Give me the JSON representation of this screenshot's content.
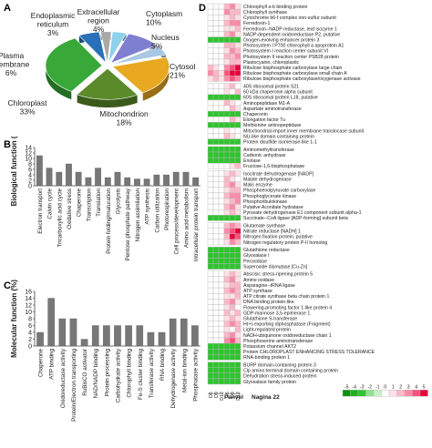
{
  "panels": {
    "a": {
      "letter": "A"
    },
    "b": {
      "letter": "B"
    },
    "c": {
      "letter": "C"
    },
    "d": {
      "letter": "D"
    }
  },
  "chart_data": [
    {
      "type": "pie",
      "panel": "A",
      "labels": [
        "Cytoplasm",
        "Nucleus",
        "Cytosol",
        "Mitochondrion",
        "Chloroplast",
        "Plasma membrane",
        "Endoplasmic reticulum",
        "Extracellular region"
      ],
      "values": [
        10,
        5,
        21,
        18,
        33,
        6,
        3,
        4
      ],
      "label_texts": [
        [
          "Cytoplasm",
          "10%"
        ],
        [
          "Nucleus",
          "5%"
        ],
        [
          "Cytosol",
          "21%"
        ],
        [
          "Mitochondrion",
          "18%"
        ],
        [
          "Chloroplast",
          "33%"
        ],
        [
          "Plasma",
          "membrane",
          "6%"
        ],
        [
          "Endoplasmic",
          "reticulum",
          "3%"
        ],
        [
          "Extracellular",
          "region",
          "4%"
        ]
      ],
      "colors": [
        "#7f7fd0",
        "#a8c8e4",
        "#e8a820",
        "#5a8a2a",
        "#38a838",
        "#2a70b8",
        "#a8a8a8",
        "#8fd0ea"
      ]
    },
    {
      "type": "bar",
      "panel": "B",
      "ylabel": "Biological function (%)",
      "ylim": [
        0,
        14
      ],
      "yticks": [
        "0",
        "2",
        "4",
        "6",
        "8",
        "10",
        "12",
        "14"
      ],
      "categories": [
        "Electron transport",
        "Calvin cycle",
        "Tricarboxylic acid cycle",
        "Oxidative stress",
        "Chaperone",
        "Transcription",
        "Translation",
        "Protein folding/maturation",
        "Glycolysis",
        "Pentose phosphate pathway",
        "Nitrogen assimilation",
        "ATP synthesis",
        "Carbon utilization",
        "Photorespiration",
        "Cell process/development",
        "Amino acid metabolism",
        "Intracellular protein transport"
      ],
      "values": [
        11,
        6.5,
        5,
        8,
        5,
        3,
        6.5,
        3,
        5,
        3,
        2.5,
        2.5,
        4,
        4,
        5,
        5,
        3
      ]
    },
    {
      "type": "bar",
      "panel": "C",
      "ylabel": "Molecular function (%)",
      "ylim": [
        0,
        16
      ],
      "yticks": [
        "0",
        "2",
        "4",
        "6",
        "8",
        "10",
        "12",
        "14",
        "16"
      ],
      "categories": [
        "Chaperone",
        "ATP binding",
        "Oxidoreductase activity",
        "Protein/Electron transporting",
        "RuBisCO activator",
        "NAD/NADP binding",
        "Protein processing",
        "Carbohydrate activity",
        "Chlorophyll binding",
        "Fe-S cluster binding",
        "Transferase activity",
        "RNA binding",
        "Dehydrogenase activity",
        "Metal-ion binding",
        "Phosphatase activity"
      ],
      "values": [
        4,
        14,
        8,
        8,
        2,
        6,
        6,
        6,
        6,
        6,
        4,
        4,
        8,
        8,
        6
      ]
    },
    {
      "type": "heatmap",
      "panel": "D",
      "columns": [
        "D6",
        "D9",
        "D12",
        "D6",
        "D9",
        "D12"
      ],
      "column_groups": [
        "Panvel",
        "Nagina 22"
      ],
      "legend_values": [
        "-5",
        "-4",
        "-3",
        "-2",
        "-1",
        "0",
        "1",
        "2",
        "3",
        "4",
        "5"
      ],
      "rows": [
        "Chlorophyll a-b binding protein",
        "Chlorophyll synthase",
        "Cytochrome b6-f complex iron-sulfur subunit",
        "Ferredoxin-1",
        "Ferredoxin--NADP reductase, leaf isozyme 1",
        "NADP-dependent oxidoreductase P2, putative",
        "Oxygen-evolving enhancer protein 3",
        "Photosystem I P700 chlorophyll a apoprotein A1",
        "Photosystem I reaction center subunit VI",
        "Photosystem II reaction center PSB28 protein",
        "Plastocyanin, chloroplastic",
        "Ribulose bisphosphate carboxylase large chain",
        "Ribulose bisphosphate carboxylase small chain A",
        "Ribulose bisphosphate carboxylase/oxygenase activase",
        "40S ribosomal protein S21",
        "60 kDa chaperonin alpha subunit",
        "60S ribosomal protein L18, putative",
        "Aminopeptidase M1-A",
        "Aspartate aminotransferase",
        "Chaperonin",
        "Elongation factor Tu",
        "Methionine aminopeptidase",
        "Mitochondrial import inner membrane translocase subunit",
        "NU-like domain containing protein",
        "Protein disulfide isomerase-like 1-1",
        "Aminomethyltransferase",
        "Carbonic anhydrase",
        "Enolase",
        "Fructose-1,6-bisphosphatase",
        "Isocitrate dehydrogenase [NADP]",
        "Malate dehydrogenase",
        "Malic enzyme",
        "Phosphoenolpyruvate carboxylase",
        "Phosphoglycerate kinase",
        "Phosphoribulokinase",
        "Putative Aconitate hydratase",
        "Pyruvate dehydrogenase E1 component subunit alpha-1",
        "Succinate--CoA ligase [ADP-forming] subunit beta",
        "Glutamate synthase",
        "Nitrate reductase [NADH] 1",
        "Nitrogen fixation protein, putative",
        "Nitrogen regulatory protein P-II homolog",
        "Glutathione reductase",
        "Glyoxalase I",
        "Peroxidase",
        "Superoxide dismutase [Cu-Zn]",
        "Abscisic stress-ripening protein 5",
        "Amine oxidase",
        "Asparagine--tRNA ligase",
        "ATP synthase",
        "ATP citrate synthase beta chain protein 1",
        "DNA binding protein-like",
        "Flowering-promoting factor 1-like protein 4",
        "GDP-mannose 3,5-epimerase 1",
        "Glutathione S-transferase",
        "H(+)-exporting diphosphatase (Fragment)",
        "Light-regulated protein",
        "NADH-ubiquinone oxidoreductase chain 1",
        "Phosphoserine aminotransferase",
        "Potassium channel AKT2",
        "Protein CHLOROPLAST ENHANCING STRESS TOLERANCE",
        "RNA-binding protein 1",
        "BURP domain-containing protein 3",
        "Clp amino terminal domain containing protein",
        "Dehydration stress-induced protein",
        "Glyoxalase family protein"
      ],
      "groups": [
        14,
        11,
        4,
        9,
        4,
        4,
        16,
        4
      ],
      "values": [
        [
          0,
          0,
          0,
          2,
          3,
          1
        ],
        [
          0,
          0,
          0,
          3,
          2,
          2
        ],
        [
          0,
          0,
          0,
          1,
          2,
          1
        ],
        [
          0,
          0,
          0,
          2,
          3,
          3
        ],
        [
          0,
          0,
          0,
          1,
          1,
          2
        ],
        [
          0,
          0,
          0,
          2,
          3,
          1
        ],
        [
          -3,
          -3,
          -3,
          -3,
          -3,
          -3
        ],
        [
          0,
          0,
          0,
          2,
          2,
          1
        ],
        [
          0,
          0,
          0,
          1,
          3,
          2
        ],
        [
          0,
          0,
          0,
          2,
          2,
          3
        ],
        [
          0,
          0,
          0,
          1,
          2,
          2
        ],
        [
          2,
          1,
          0,
          3,
          4,
          5
        ],
        [
          3,
          2,
          1,
          4,
          5,
          5
        ],
        [
          1,
          2,
          1,
          3,
          4,
          3
        ],
        [
          0,
          0,
          0,
          1,
          2,
          0
        ],
        [
          0,
          0,
          0,
          1,
          0,
          2
        ],
        [
          -3,
          -3,
          -3,
          -3,
          -3,
          -3
        ],
        [
          0,
          0,
          0,
          2,
          1,
          0
        ],
        [
          0,
          0,
          0,
          0,
          2,
          1
        ],
        [
          -3,
          -3,
          -3,
          -3,
          -3,
          -3
        ],
        [
          0,
          0,
          0,
          0,
          2,
          1
        ],
        [
          -3,
          -3,
          -3,
          -3,
          -3,
          -3
        ],
        [
          0,
          0,
          0,
          1,
          0,
          0
        ],
        [
          0,
          0,
          0,
          2,
          1,
          0
        ],
        [
          -3,
          -3,
          -3,
          -3,
          -3,
          -3
        ],
        [
          -3,
          -3,
          -3,
          -3,
          -3,
          -3
        ],
        [
          -3,
          -3,
          -3,
          -3,
          -3,
          -3
        ],
        [
          -3,
          -3,
          -3,
          -3,
          -3,
          -3
        ],
        [
          0,
          0,
          0,
          0,
          1,
          2
        ],
        [
          0,
          0,
          0,
          1,
          2,
          1
        ],
        [
          0,
          0,
          0,
          2,
          1,
          0
        ],
        [
          0,
          0,
          0,
          2,
          3,
          1
        ],
        [
          0,
          0,
          0,
          1,
          2,
          2
        ],
        [
          0,
          0,
          0,
          2,
          3,
          3
        ],
        [
          0,
          0,
          0,
          1,
          2,
          3
        ],
        [
          0,
          0,
          0,
          2,
          3,
          1
        ],
        [
          0,
          0,
          0,
          1,
          2,
          1
        ],
        [
          -3,
          -3,
          -3,
          -3,
          -3,
          -3
        ],
        [
          0,
          0,
          0,
          2,
          3,
          2
        ],
        [
          0,
          0,
          0,
          3,
          4,
          5
        ],
        [
          0,
          0,
          0,
          2,
          5,
          4
        ],
        [
          0,
          0,
          0,
          1,
          3,
          2
        ],
        [
          -3,
          -3,
          -3,
          -3,
          -3,
          -3
        ],
        [
          -3,
          -3,
          -3,
          -3,
          -3,
          -3
        ],
        [
          -3,
          -3,
          -3,
          -3,
          -3,
          -3
        ],
        [
          -3,
          -3,
          -3,
          -3,
          -3,
          -3
        ],
        [
          0,
          0,
          0,
          1,
          2,
          1
        ],
        [
          0,
          0,
          0,
          2,
          3,
          1
        ],
        [
          0,
          0,
          0,
          1,
          2,
          2
        ],
        [
          0,
          0,
          0,
          2,
          3,
          2
        ],
        [
          0,
          0,
          0,
          1,
          1,
          2
        ],
        [
          0,
          0,
          0,
          2,
          3,
          1
        ],
        [
          0,
          0,
          0,
          1,
          2,
          0
        ],
        [
          0,
          0,
          0,
          2,
          1,
          2
        ],
        [
          0,
          0,
          0,
          1,
          2,
          1
        ],
        [
          0,
          0,
          0,
          2,
          3,
          2
        ],
        [
          0,
          0,
          0,
          1,
          0,
          2
        ],
        [
          0,
          0,
          0,
          2,
          3,
          1
        ],
        [
          0,
          0,
          0,
          3,
          4,
          2
        ],
        [
          -3,
          -3,
          -3,
          -3,
          -3,
          -3
        ],
        [
          -3,
          -3,
          -3,
          -3,
          -3,
          -3
        ],
        [
          -3,
          -3,
          -3,
          -3,
          -3,
          -3
        ],
        [
          -3,
          -3,
          -3,
          -3,
          -3,
          -3
        ],
        [
          -3,
          -3,
          -3,
          -3,
          -3,
          -3
        ],
        [
          -3,
          -3,
          -3,
          -3,
          -3,
          -3
        ],
        [
          -3,
          -3,
          -3,
          -3,
          -3,
          -3
        ]
      ]
    }
  ]
}
